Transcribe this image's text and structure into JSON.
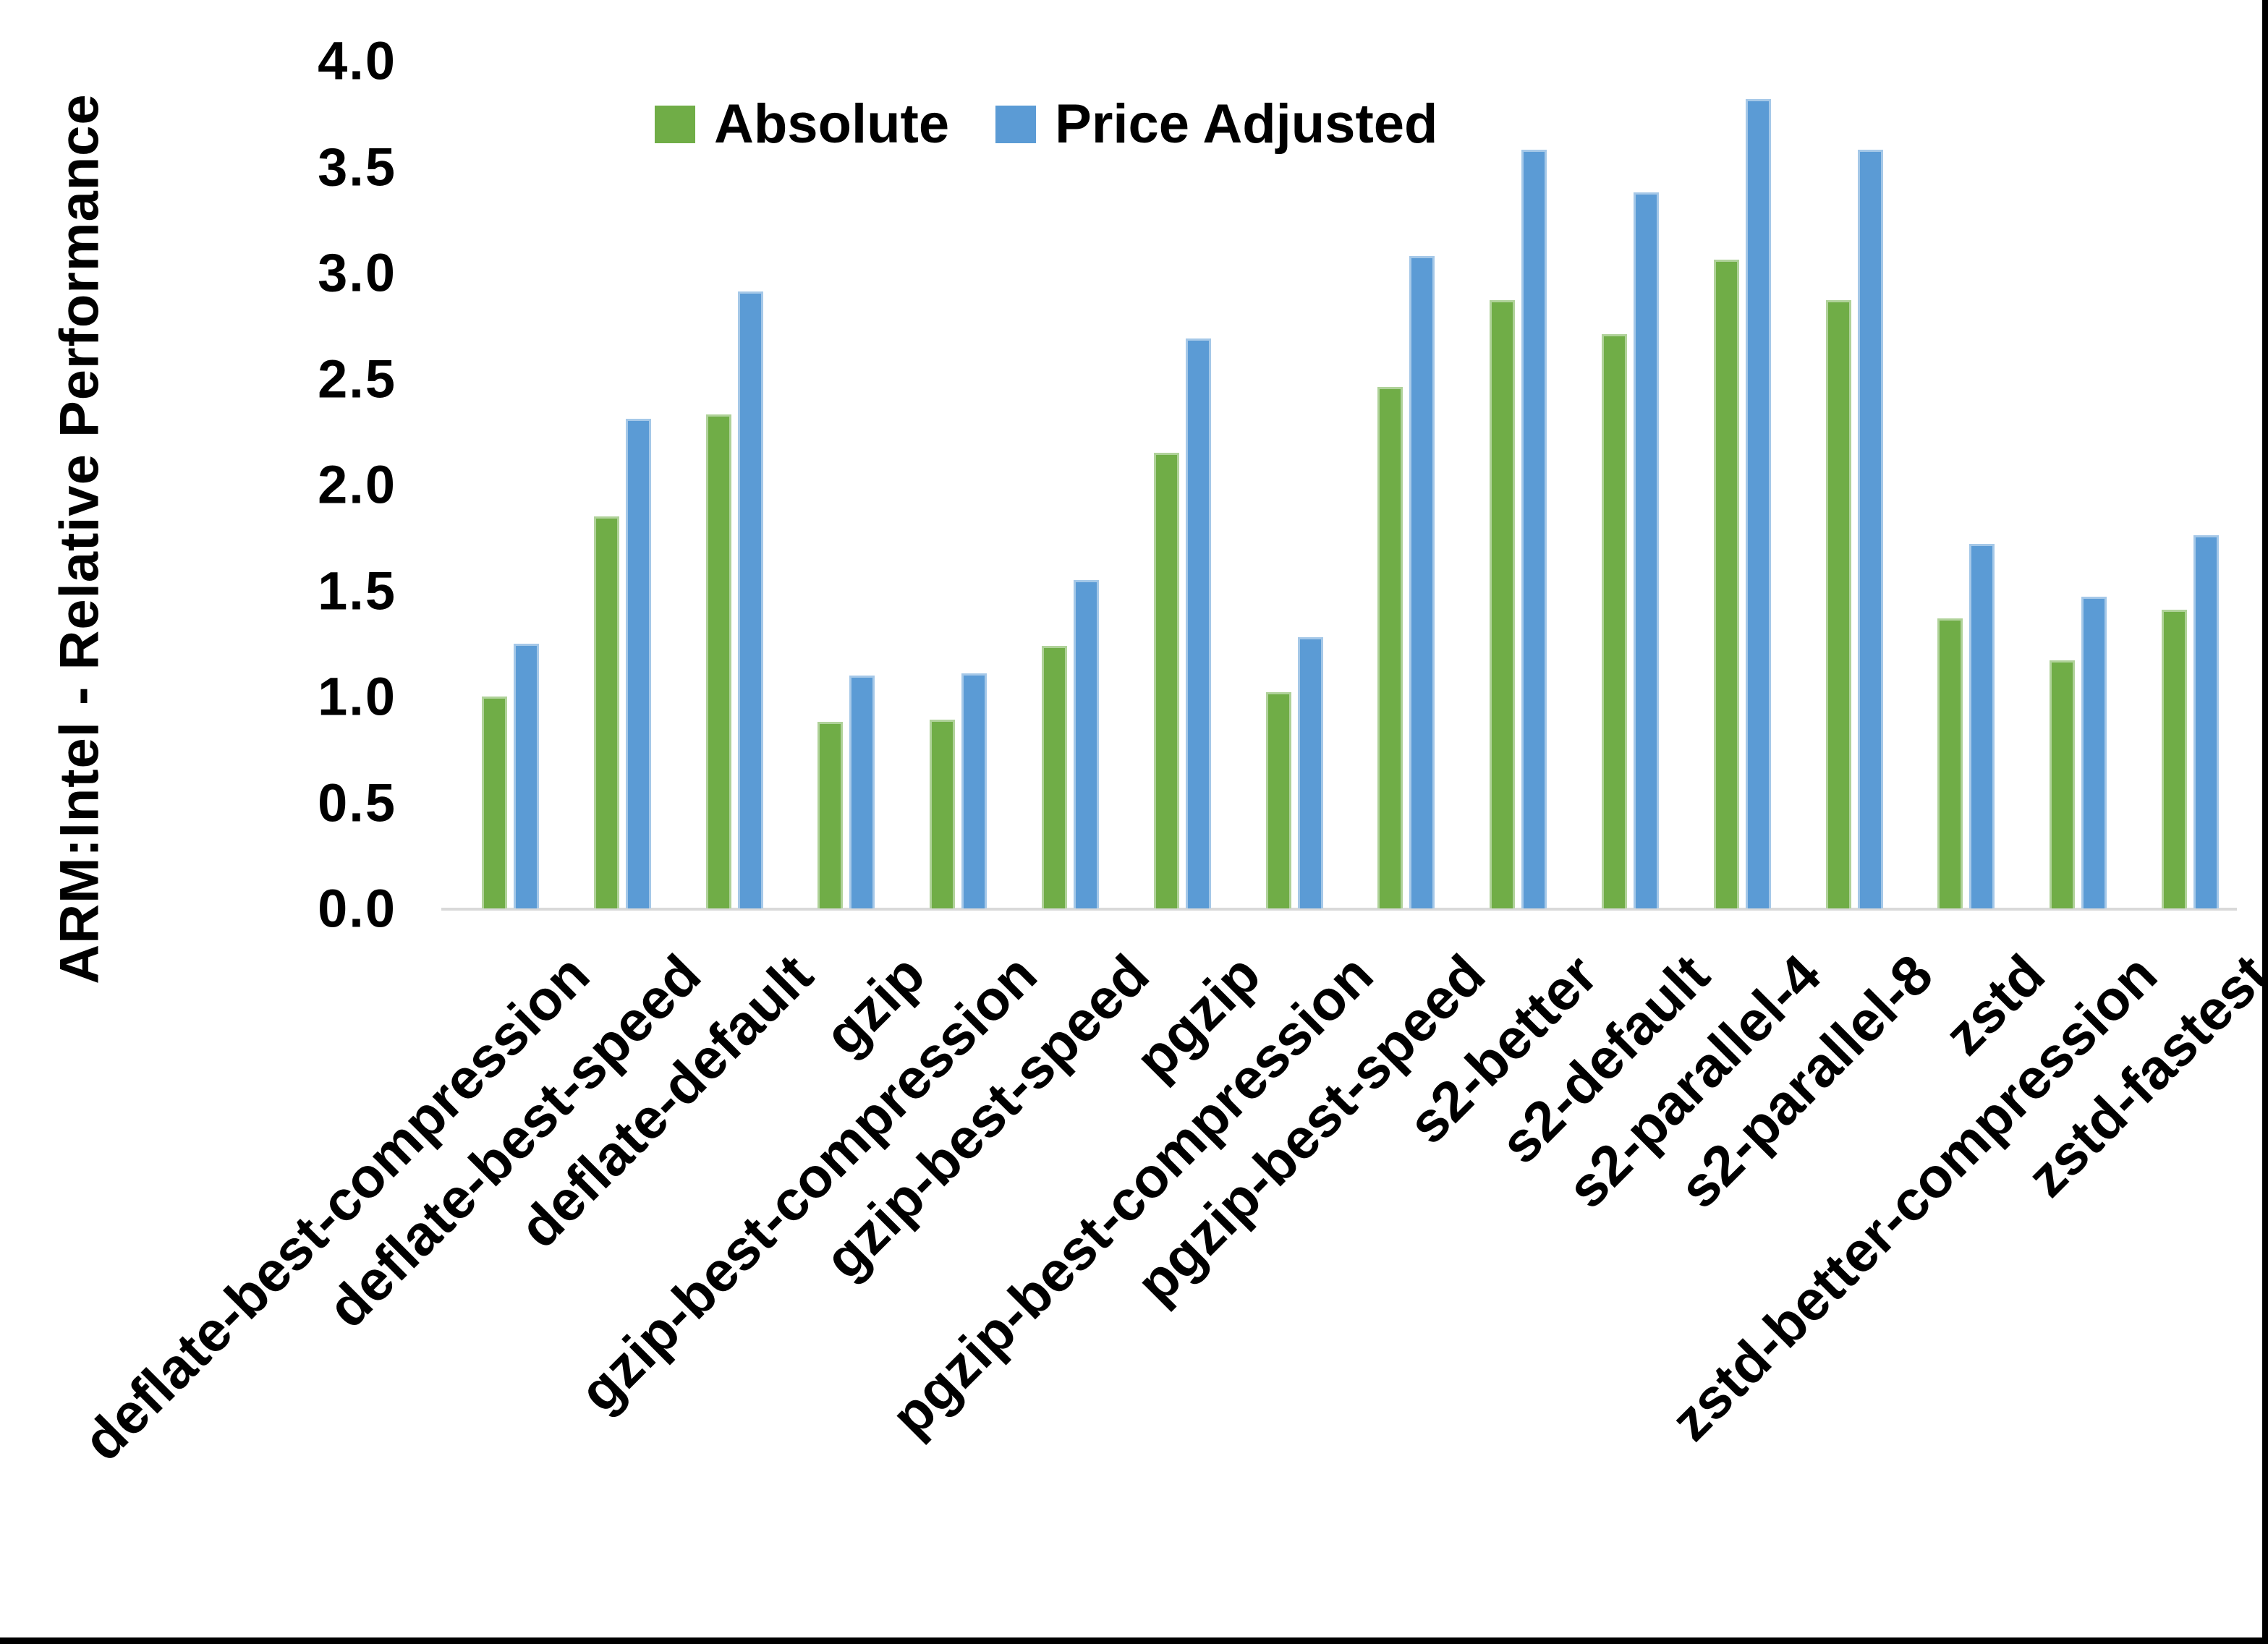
{
  "chart_data": {
    "type": "bar",
    "title": "",
    "xlabel": "",
    "ylabel": "ARM:Intel - Relative Performance",
    "ylim": [
      0.0,
      4.0
    ],
    "ytick_step": 0.5,
    "yticks": [
      "0.0",
      "0.5",
      "1.0",
      "1.5",
      "2.0",
      "2.5",
      "3.0",
      "3.5",
      "4.0"
    ],
    "grid": false,
    "legend_position": "top-center",
    "categories": [
      "deflate-best-compression",
      "deflate-best-speed",
      "deflate-default",
      "gzip",
      "gzip-best-compression",
      "gzip-best-speed",
      "pgzip",
      "pgzip-best-compression",
      "pgzip-best-speed",
      "s2-better",
      "s2-default",
      "s2-parallel-4",
      "s2-parallel-8",
      "zstd",
      "zstd-better-compression",
      "zstd-fastest"
    ],
    "series": [
      {
        "name": "Absolute",
        "color": "#70AD47",
        "values": [
          1.0,
          1.85,
          2.33,
          0.88,
          0.89,
          1.24,
          2.15,
          1.02,
          2.46,
          2.87,
          2.71,
          3.06,
          2.87,
          1.37,
          1.17,
          1.41
        ]
      },
      {
        "name": "Price Adjusted",
        "color": "#5B9BD5",
        "values": [
          1.25,
          2.31,
          2.91,
          1.1,
          1.11,
          1.55,
          2.69,
          1.28,
          3.08,
          3.58,
          3.38,
          3.82,
          3.58,
          1.72,
          1.47,
          1.76
        ]
      }
    ]
  },
  "colors": {
    "background": "#FFFFFF",
    "axis_line": "#D9D9D9",
    "text": "#000000",
    "frame_border": "#000000"
  }
}
